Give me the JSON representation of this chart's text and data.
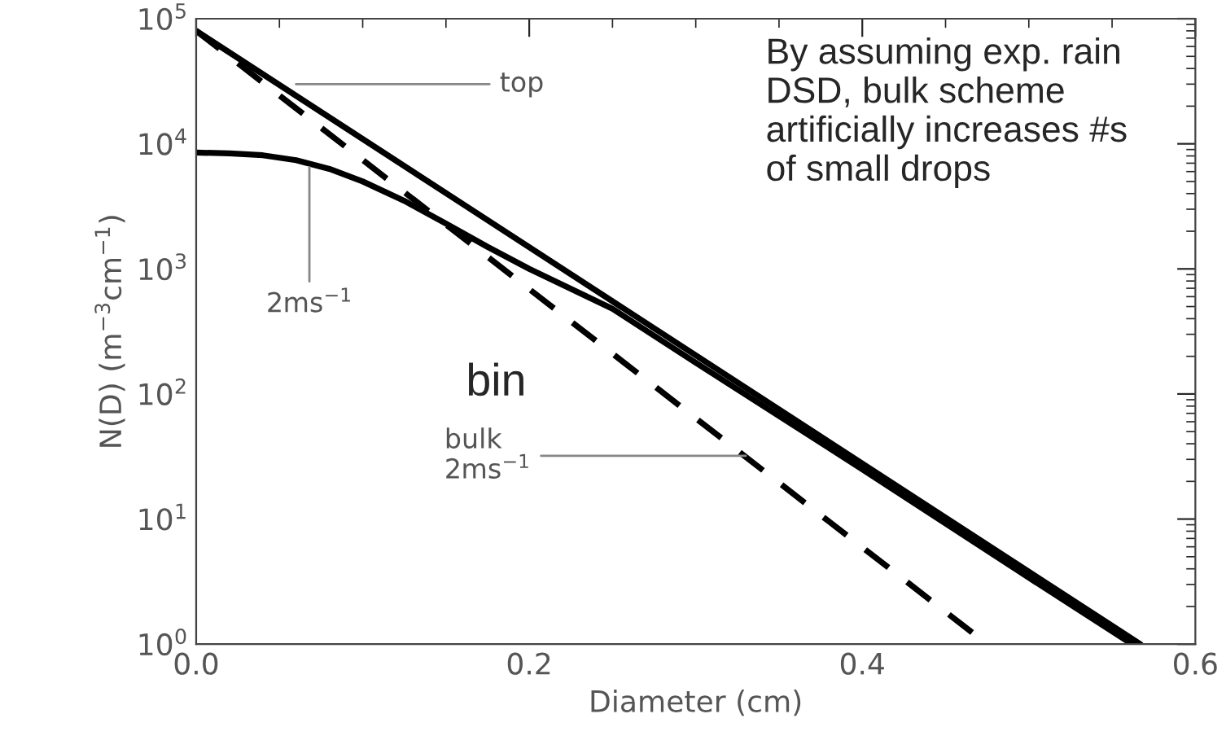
{
  "chart_data": {
    "type": "line",
    "xlabel": "Diameter (cm)",
    "ylabel": "N(D) (m$^{−3}$cm$^{−1}$)",
    "log": "y",
    "grid": false,
    "legend": false,
    "xlim": [
      0,
      0.6
    ],
    "xticks": [
      {
        "value": 0,
        "label": "0.0"
      },
      {
        "value": 0.2,
        "label": "0.2"
      },
      {
        "value": 0.4,
        "label": "0.4"
      },
      {
        "value": 0.6,
        "label": "0.6"
      }
    ],
    "ylim": [
      1,
      100000
    ],
    "yticks": [
      {
        "value": 1,
        "label": "10$^{0}$"
      },
      {
        "value": 10,
        "label": "10$^{1}$"
      },
      {
        "value": 100,
        "label": "10$^{2}$"
      },
      {
        "value": 1000,
        "label": "10$^{3}$"
      },
      {
        "value": 10000,
        "label": "10$^{4}$"
      },
      {
        "value": 100000,
        "label": "10$^{5}$"
      }
    ],
    "series": [
      {
        "color": "#000000",
        "line_style": "solid",
        "x": [
          0,
          0.567
        ],
        "values": [
          80000,
          1
        ]
      },
      {
        "color": "#000000",
        "line_style": "solid",
        "x": [
          0,
          0.02,
          0.04,
          0.06,
          0.08,
          0.1,
          0.125,
          0.15,
          0.175,
          0.2,
          0.25,
          0.3,
          0.4,
          0.5,
          0.562
        ],
        "values": [
          8500,
          8400,
          8100,
          7400,
          6300,
          5000,
          3500,
          2300,
          1500,
          1000,
          480,
          178,
          25,
          3.4,
          1
        ]
      },
      {
        "color": "#000000",
        "line_style": "dashed",
        "x": [
          0,
          0.475
        ],
        "values": [
          80000,
          1
        ]
      }
    ],
    "annotations": [
      {
        "text": "top",
        "x": 0.06,
        "y": 30000
      },
      {
        "text": "2ms$^{−1}$",
        "x": 0.068,
        "y": 6500
      },
      {
        "text": "bulk\n2ms$^{−1}$",
        "x": 0.33,
        "y": 32
      },
      "bin",
      "By assuming exp. rain\nDSD, bulk scheme\nartificially increases #s\nof small drops"
    ]
  }
}
